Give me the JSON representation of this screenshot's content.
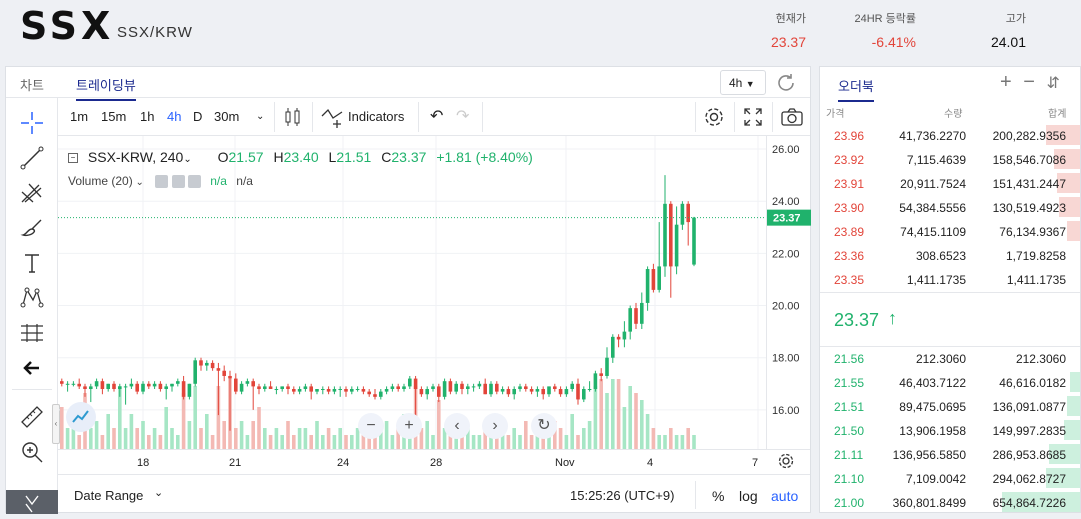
{
  "header": {
    "symbol": "SSX",
    "pair": "SSX/KRW",
    "current_price_label": "현재가",
    "current_price": "23.37",
    "change_label": "24HR 등락률",
    "change": "-6.41%",
    "high_label": "고가",
    "high": "24.01"
  },
  "chart_tabs": {
    "chart": "차트",
    "tradingview": "트레이딩뷰"
  },
  "interval_select": "4h",
  "toolbar": {
    "intervals": [
      "1m",
      "15m",
      "1h",
      "4h",
      "D",
      "30m"
    ],
    "active_interval": "4h",
    "indicators_label": "Indicators"
  },
  "legend": {
    "symbol": "SSX-KRW, 240",
    "o_label": "O",
    "o": "21.57",
    "h_label": "H",
    "h": "23.40",
    "l_label": "L",
    "l": "21.51",
    "c_label": "C",
    "c": "23.37",
    "change": "+1.81 (+8.40%)",
    "volume_label": "Volume (20)",
    "volume_val1": "n/a",
    "volume_val2": "n/a"
  },
  "price_axis": [
    "26.00",
    "24.00",
    "22.00",
    "20.00",
    "18.00",
    "16.00"
  ],
  "current_price_tag": "23.37",
  "time_axis": [
    "18",
    "21",
    "24",
    "28",
    "Nov",
    "4",
    "7"
  ],
  "bottom": {
    "date_range": "Date Range",
    "clock": "15:25:26 (UTC+9)",
    "percent": "%",
    "log": "log",
    "auto": "auto"
  },
  "chart_data": {
    "type": "candlestick",
    "symbol": "SSX-KRW",
    "ylim": [
      14.5,
      26.5
    ],
    "candles": [
      [
        17.1,
        17.2,
        16.9,
        17.0
      ],
      [
        17.0,
        17.1,
        16.7,
        17.0
      ],
      [
        17.0,
        17.1,
        16.9,
        17.0
      ],
      [
        17.0,
        17.2,
        16.8,
        16.9
      ],
      [
        16.9,
        17.0,
        16.5,
        16.8
      ],
      [
        16.8,
        17.0,
        16.3,
        16.9
      ],
      [
        16.9,
        17.2,
        16.8,
        17.1
      ],
      [
        17.1,
        17.2,
        16.6,
        16.8
      ],
      [
        16.8,
        17.0,
        16.7,
        17.0
      ],
      [
        17.0,
        17.1,
        16.7,
        16.8
      ],
      [
        16.8,
        17.0,
        16.5,
        16.9
      ],
      [
        16.9,
        17.0,
        16.2,
        16.9
      ],
      [
        16.9,
        17.2,
        16.8,
        17.0
      ],
      [
        17.0,
        17.1,
        16.6,
        16.7
      ],
      [
        16.7,
        17.1,
        16.6,
        17.0
      ],
      [
        17.0,
        17.1,
        16.8,
        16.9
      ],
      [
        16.9,
        17.1,
        16.8,
        17.0
      ],
      [
        17.0,
        17.1,
        16.7,
        16.8
      ],
      [
        16.8,
        17.0,
        16.4,
        16.9
      ],
      [
        16.9,
        17.0,
        16.7,
        17.0
      ],
      [
        17.0,
        17.2,
        16.9,
        17.1
      ],
      [
        17.1,
        17.3,
        16.4,
        16.5
      ],
      [
        16.5,
        17.0,
        16.4,
        17.0
      ],
      [
        17.0,
        18.0,
        16.9,
        17.9
      ],
      [
        17.9,
        18.0,
        17.5,
        17.7
      ],
      [
        17.7,
        17.9,
        17.5,
        17.8
      ],
      [
        17.8,
        17.9,
        17.5,
        17.6
      ],
      [
        17.6,
        17.8,
        15.8,
        17.5
      ],
      [
        17.5,
        17.7,
        17.1,
        17.3
      ],
      [
        17.3,
        17.5,
        15.2,
        17.2
      ],
      [
        17.2,
        17.4,
        16.6,
        16.7
      ],
      [
        16.7,
        17.1,
        16.6,
        17.0
      ],
      [
        17.0,
        17.2,
        16.9,
        17.1
      ],
      [
        17.1,
        17.2,
        16.0,
        16.9
      ],
      [
        16.9,
        17.0,
        16.6,
        16.8
      ],
      [
        16.8,
        17.0,
        16.7,
        16.9
      ],
      [
        16.9,
        17.1,
        16.8,
        16.8
      ],
      [
        16.8,
        16.9,
        16.6,
        16.8
      ],
      [
        16.8,
        16.9,
        16.7,
        16.9
      ],
      [
        16.9,
        17.0,
        16.6,
        16.8
      ],
      [
        16.8,
        16.9,
        16.6,
        16.7
      ],
      [
        16.7,
        16.9,
        16.6,
        16.8
      ],
      [
        16.8,
        17.0,
        16.7,
        16.9
      ],
      [
        16.9,
        17.0,
        16.4,
        16.7
      ],
      [
        16.7,
        16.8,
        16.6,
        16.8
      ],
      [
        16.8,
        16.9,
        16.6,
        16.8
      ],
      [
        16.8,
        16.9,
        16.6,
        16.7
      ],
      [
        16.7,
        16.9,
        16.6,
        16.8
      ],
      [
        16.8,
        16.9,
        16.5,
        16.8
      ],
      [
        16.8,
        16.9,
        16.5,
        16.7
      ],
      [
        16.7,
        16.9,
        16.6,
        16.8
      ],
      [
        16.8,
        16.9,
        16.7,
        16.8
      ],
      [
        16.8,
        16.9,
        16.6,
        16.7
      ],
      [
        16.7,
        16.8,
        16.5,
        16.6
      ],
      [
        16.6,
        16.8,
        16.4,
        16.5
      ],
      [
        16.5,
        16.8,
        16.4,
        16.7
      ],
      [
        16.7,
        16.9,
        16.6,
        16.8
      ],
      [
        16.8,
        17.0,
        16.7,
        16.9
      ],
      [
        16.9,
        17.0,
        16.7,
        16.8
      ],
      [
        16.8,
        17.0,
        16.7,
        16.9
      ],
      [
        16.9,
        17.3,
        16.8,
        17.2
      ],
      [
        17.2,
        17.3,
        15.0,
        16.8
      ],
      [
        16.8,
        16.9,
        16.5,
        16.6
      ],
      [
        16.6,
        16.9,
        16.4,
        16.8
      ],
      [
        16.8,
        17.0,
        16.7,
        16.9
      ],
      [
        16.9,
        17.0,
        16.3,
        16.5
      ],
      [
        16.5,
        17.2,
        16.4,
        17.1
      ],
      [
        17.1,
        17.2,
        16.6,
        16.7
      ],
      [
        16.7,
        17.1,
        16.6,
        17.0
      ],
      [
        17.0,
        17.1,
        16.6,
        16.8
      ],
      [
        16.8,
        17.0,
        16.6,
        16.9
      ],
      [
        16.9,
        17.0,
        16.7,
        16.9
      ],
      [
        16.9,
        17.1,
        16.8,
        17.0
      ],
      [
        17.0,
        17.2,
        16.6,
        16.6
      ],
      [
        16.6,
        17.1,
        16.5,
        17.0
      ],
      [
        17.0,
        17.1,
        16.6,
        16.7
      ],
      [
        16.7,
        16.9,
        16.6,
        16.8
      ],
      [
        16.8,
        16.9,
        16.5,
        16.6
      ],
      [
        16.6,
        16.9,
        16.4,
        16.8
      ],
      [
        16.8,
        17.0,
        16.7,
        16.9
      ],
      [
        16.9,
        17.0,
        16.7,
        16.8
      ],
      [
        16.8,
        16.9,
        16.6,
        16.7
      ],
      [
        16.7,
        16.9,
        16.5,
        16.8
      ],
      [
        16.8,
        16.9,
        16.4,
        16.6
      ],
      [
        16.6,
        16.9,
        16.5,
        16.9
      ],
      [
        16.9,
        17.0,
        16.7,
        16.8
      ],
      [
        16.8,
        16.9,
        16.5,
        16.6
      ],
      [
        16.6,
        16.9,
        16.5,
        16.8
      ],
      [
        16.8,
        17.1,
        16.7,
        17.0
      ],
      [
        17.0,
        17.2,
        16.2,
        16.4
      ],
      [
        16.4,
        16.9,
        16.3,
        16.8
      ],
      [
        16.8,
        17.1,
        16.7,
        16.8
      ],
      [
        16.8,
        17.5,
        16.7,
        17.4
      ],
      [
        17.4,
        17.6,
        17.1,
        17.3
      ],
      [
        17.3,
        18.4,
        17.2,
        18.0
      ],
      [
        18.0,
        18.9,
        17.8,
        18.8
      ],
      [
        18.8,
        18.9,
        18.4,
        18.7
      ],
      [
        18.7,
        19.4,
        18.4,
        19.0
      ],
      [
        19.0,
        20.0,
        18.7,
        19.9
      ],
      [
        19.9,
        20.1,
        19.1,
        19.3
      ],
      [
        19.3,
        20.5,
        19.1,
        20.1
      ],
      [
        20.1,
        21.5,
        19.8,
        21.4
      ],
      [
        21.4,
        21.6,
        20.5,
        20.6
      ],
      [
        20.6,
        23.2,
        20.5,
        21.5
      ],
      [
        21.5,
        25.0,
        21.1,
        23.9
      ],
      [
        23.9,
        24.0,
        20.3,
        21.5
      ],
      [
        21.5,
        23.8,
        21.2,
        23.1
      ],
      [
        23.1,
        24.0,
        22.9,
        23.9
      ],
      [
        23.9,
        24.0,
        22.3,
        23.2
      ],
      [
        21.57,
        23.4,
        21.51,
        23.37
      ]
    ],
    "volumes": [
      0.6,
      0.3,
      0.4,
      0.2,
      0.8,
      0.3,
      0.4,
      0.2,
      0.5,
      0.3,
      0.9,
      0.3,
      0.5,
      0.3,
      0.4,
      0.2,
      0.3,
      0.2,
      0.6,
      0.3,
      0.2,
      0.8,
      0.4,
      0.9,
      0.3,
      0.5,
      0.2,
      0.9,
      0.4,
      1.0,
      0.3,
      0.4,
      0.2,
      0.4,
      0.6,
      0.3,
      0.2,
      0.3,
      0.2,
      0.4,
      0.2,
      0.3,
      0.3,
      0.2,
      0.4,
      0.2,
      0.3,
      0.2,
      0.3,
      0.2,
      0.2,
      0.3,
      0.2,
      0.5,
      0.2,
      0.3,
      0.4,
      0.2,
      0.3,
      0.5,
      0.2,
      0.9,
      0.3,
      0.4,
      0.2,
      0.7,
      0.3,
      0.2,
      0.4,
      0.2,
      0.3,
      0.2,
      0.2,
      0.4,
      0.3,
      0.2,
      0.3,
      0.2,
      0.3,
      0.2,
      0.4,
      0.2,
      0.3,
      0.2,
      0.2,
      0.4,
      0.3,
      0.2,
      0.5,
      0.2,
      0.3,
      0.4,
      0.9,
      1.0,
      0.8,
      1.0,
      1.0,
      0.6,
      0.9,
      0.8,
      0.7,
      0.5,
      0.3,
      0.2,
      0.2,
      0.3,
      0.2,
      0.2,
      0.3,
      0.2
    ]
  },
  "orderbook": {
    "title": "오더북",
    "col_price": "가격",
    "col_qty": "수량",
    "col_total": "합계",
    "asks": [
      {
        "price": "23.96",
        "qty": "41,736.2270",
        "total": "200,282.9356",
        "depth": 0.13
      },
      {
        "price": "23.92",
        "qty": "7,115.4639",
        "total": "158,546.7086",
        "depth": 0.1
      },
      {
        "price": "23.91",
        "qty": "20,911.7524",
        "total": "151,431.2447",
        "depth": 0.09
      },
      {
        "price": "23.90",
        "qty": "54,384.5556",
        "total": "130,519.4923",
        "depth": 0.08
      },
      {
        "price": "23.89",
        "qty": "74,415.1109",
        "total": "76,134.9367",
        "depth": 0.05
      },
      {
        "price": "23.36",
        "qty": "308.6523",
        "total": "1,719.8258",
        "depth": 0.0
      },
      {
        "price": "23.35",
        "qty": "1,411.1735",
        "total": "1,411.1735",
        "depth": 0.0
      }
    ],
    "last_price": "23.37",
    "bids": [
      {
        "price": "21.56",
        "qty": "212.3060",
        "total": "212.3060",
        "depth": 0.0
      },
      {
        "price": "21.55",
        "qty": "46,403.7122",
        "total": "46,616.0182",
        "depth": 0.04
      },
      {
        "price": "21.51",
        "qty": "89,475.0695",
        "total": "136,091.0877",
        "depth": 0.05
      },
      {
        "price": "21.50",
        "qty": "13,906.1958",
        "total": "149,997.2835",
        "depth": 0.06
      },
      {
        "price": "21.11",
        "qty": "136,956.5850",
        "total": "286,953.8685",
        "depth": 0.12
      },
      {
        "price": "21.10",
        "qty": "7,109.0042",
        "total": "294,062.8727",
        "depth": 0.13
      },
      {
        "price": "21.00",
        "qty": "360,801.8499",
        "total": "654,864.7226",
        "depth": 0.3
      }
    ]
  }
}
